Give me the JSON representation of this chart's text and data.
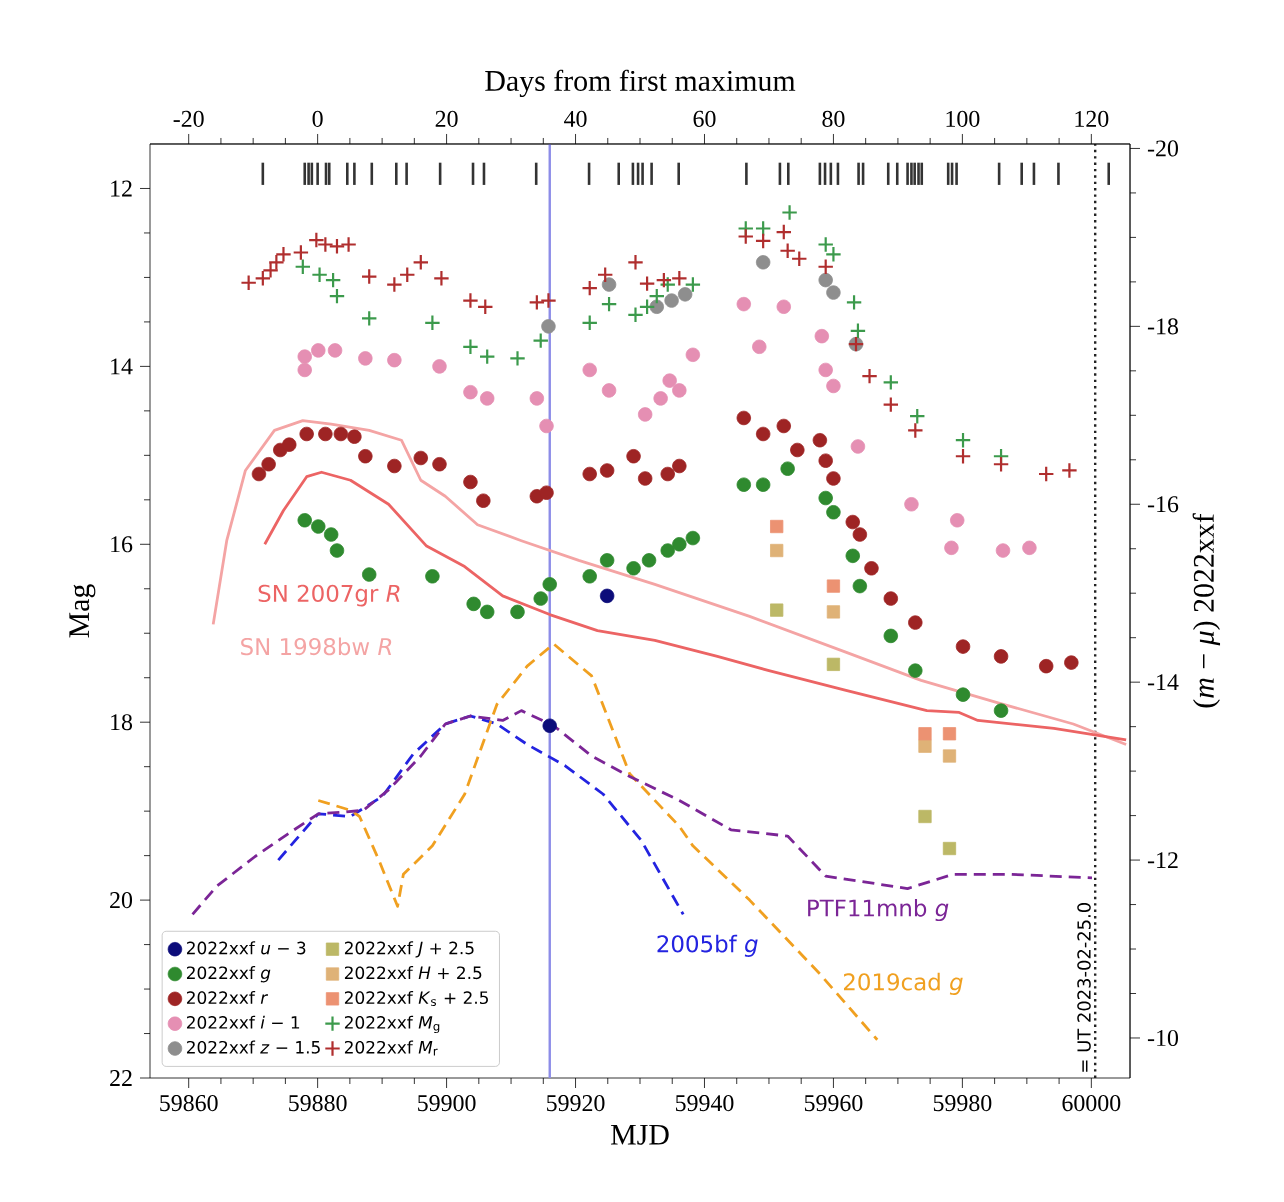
{
  "chart_data": {
    "type": "scatter",
    "xlabel": "MJD",
    "ylabel": "Mag",
    "x2label": "Days from first maximum",
    "y2label": "(*m* − *μ*) 2022xxf",
    "xlim": [
      59854,
      60006
    ],
    "ylim": [
      22,
      11.5
    ],
    "x2lim": [
      -26,
      126
    ],
    "y2lim": [
      -9.55,
      -20.05
    ],
    "xticks": [
      59860,
      59880,
      59900,
      59920,
      59940,
      59960,
      59980,
      60000
    ],
    "yticks": [
      12,
      14,
      16,
      18,
      20,
      22
    ],
    "x2ticks": [
      -20,
      0,
      20,
      40,
      60,
      80,
      100,
      120
    ],
    "y2ticks": [
      -20,
      -18,
      -16,
      -14,
      -12,
      -10
    ],
    "legend": "bottom left",
    "ref_lines": [
      {
        "axis": "x",
        "value": 59916.0,
        "color": "#8c8ce8"
      },
      {
        "axis": "x",
        "value": 60000.6,
        "label": "= UT 2023-02-25.0",
        "line_style": "dotted",
        "color": "#222222"
      }
    ],
    "annotations": [
      {
        "text": "SN 2007gr *R*",
        "x": 59871.8,
        "y": 16.0
      },
      {
        "text": "SN 1998bw *R*",
        "x": 59863.8,
        "y": 16.9
      },
      {
        "text": "2005bf *g*",
        "x": 59936.7,
        "y": 20.16
      },
      {
        "text": "PTF11mnb *g*",
        "x": 59971.5,
        "y": 19.87
      },
      {
        "text": "2019cad *g*",
        "x": 59957.9,
        "y": 20.83
      }
    ],
    "series": [
      {
        "type": "line",
        "color": "#f4a4a4",
        "line_style": "solid",
        "marker": "none",
        "x": [
          59863.8,
          59865.9,
          59868.8,
          59873.3,
          59877.7,
          59882.1,
          59888.0,
          59893.0,
          59896.0,
          59899.8,
          59904.8,
          59911.6,
          59920.5,
          59932.3,
          59947.0,
          59961.8,
          59973.6,
          59985.4,
          59997.2,
          60005.4
        ],
        "values": [
          16.9,
          15.96,
          15.17,
          14.72,
          14.61,
          14.65,
          14.72,
          14.83,
          15.28,
          15.46,
          15.78,
          15.96,
          16.18,
          16.45,
          16.81,
          17.21,
          17.53,
          17.78,
          18.02,
          18.25
        ]
      },
      {
        "type": "line",
        "color": "#ec6464",
        "line_style": "solid",
        "marker": "none",
        "x": [
          59871.8,
          59874.7,
          59878.3,
          59880.6,
          59885.1,
          59891.0,
          59896.9,
          59902.8,
          59908.7,
          59916.0,
          59923.4,
          59932.3,
          59942.0,
          59950.0,
          59961.8,
          59974.5,
          59979.5,
          59982.4,
          59994.2,
          60005.4
        ],
        "values": [
          16.0,
          15.62,
          15.24,
          15.19,
          15.28,
          15.55,
          16.02,
          16.25,
          16.58,
          16.79,
          16.97,
          17.08,
          17.26,
          17.42,
          17.64,
          17.87,
          17.89,
          17.98,
          18.07,
          18.2
        ]
      },
      {
        "type": "line",
        "color": "#2323e0",
        "line_style": "dashed",
        "marker": "none",
        "x": [
          59873.9,
          59880.1,
          59885.1,
          59890.1,
          59894.8,
          59899.8,
          59903.7,
          59907.8,
          59912.5,
          59918.4,
          59924.3,
          59930.2,
          59936.7
        ],
        "values": [
          19.55,
          19.03,
          19.06,
          18.83,
          18.36,
          18.02,
          17.93,
          18.02,
          18.25,
          18.49,
          18.81,
          19.33,
          20.16
        ]
      },
      {
        "type": "line",
        "color": "#f0a020",
        "line_style": "dashed",
        "marker": "none",
        "x": [
          59880.1,
          59885.1,
          59886.5,
          59889.5,
          59892.4,
          59893.3,
          59897.8,
          59902.8,
          59907.8,
          59912.5,
          59916.6,
          59922.5,
          59925.5,
          59928.4,
          59936.1,
          59938.2,
          59947.0,
          59957.9,
          59966.8
        ],
        "values": [
          18.88,
          18.99,
          19.06,
          19.55,
          20.07,
          19.71,
          19.39,
          18.81,
          17.8,
          17.37,
          17.12,
          17.48,
          18.04,
          18.58,
          19.17,
          19.39,
          20.0,
          20.83,
          21.57
        ]
      },
      {
        "type": "line",
        "color": "#7b2596",
        "line_style": "dashed",
        "marker": "none",
        "x": [
          59860.6,
          59864.4,
          59870.3,
          59875.3,
          59880.1,
          59884.2,
          59887.1,
          59891.0,
          59896.0,
          59899.8,
          59903.7,
          59908.7,
          59911.6,
          59916.6,
          59922.5,
          59928.4,
          59936.1,
          59944.1,
          59952.9,
          59958.8,
          59971.5,
          59978.6,
          59987.4,
          60000.1
        ],
        "values": [
          20.16,
          19.84,
          19.51,
          19.26,
          19.03,
          19.01,
          18.99,
          18.76,
          18.38,
          18.02,
          17.93,
          17.98,
          17.87,
          18.04,
          18.38,
          18.61,
          18.88,
          19.21,
          19.28,
          19.73,
          19.87,
          19.71,
          19.71,
          19.75
        ]
      },
      {
        "type": "bar",
        "color": "#333333",
        "x": [
          59871.5,
          59878.0,
          59878.6,
          59879.1,
          59880.0,
          59881.3,
          59881.8,
          59884.6,
          59885.7,
          59888.4,
          59892.2,
          59893.8,
          59899.0,
          59904.1,
          59905.8,
          59913.9,
          59922.1,
          59926.7,
          59928.9,
          59929.7,
          59930.4,
          59931.8,
          59936.0,
          59946.5,
          59951.7,
          59953.0,
          59957.9,
          59958.7,
          59959.6,
          59960.7,
          59963.9,
          59964.6,
          59968.5,
          59969.9,
          59971.5,
          59972.1,
          59972.6,
          59973.2,
          59973.7,
          59977.8,
          59978.4,
          59979.1,
          59985.7,
          59989.2,
          59991.1,
          59994.9,
          60002.7
        ],
        "base": [
          11.71,
          11.71,
          11.71,
          11.71,
          11.71,
          11.71,
          11.71,
          11.71,
          11.71,
          11.71,
          11.71,
          11.71,
          11.71,
          11.71,
          11.71,
          11.71,
          11.71,
          11.71,
          11.71,
          11.71,
          11.71,
          11.71,
          11.71,
          11.71,
          11.71,
          11.71,
          11.71,
          11.71,
          11.71,
          11.71,
          11.71,
          11.71,
          11.71,
          11.71,
          11.71,
          11.71,
          11.71,
          11.71,
          11.71,
          11.71,
          11.71,
          11.71,
          11.71,
          11.71,
          11.71,
          11.71,
          11.71
        ],
        "values": [
          0.25,
          0.25,
          0.25,
          0.25,
          0.25,
          0.25,
          0.25,
          0.25,
          0.25,
          0.25,
          0.25,
          0.25,
          0.25,
          0.25,
          0.25,
          0.25,
          0.25,
          0.25,
          0.25,
          0.25,
          0.25,
          0.25,
          0.25,
          0.25,
          0.25,
          0.25,
          0.25,
          0.25,
          0.25,
          0.25,
          0.25,
          0.25,
          0.25,
          0.25,
          0.25,
          0.25,
          0.25,
          0.25,
          0.25,
          0.25,
          0.25,
          0.25,
          0.25,
          0.25,
          0.25,
          0.25,
          0.25
        ]
      },
      {
        "name": "2022xxf *u* − 3",
        "marker": "circle",
        "color": "#0c0c7a",
        "x": [
          59924.9,
          59916.0
        ],
        "values": [
          16.58,
          18.04
        ]
      },
      {
        "name": "2022xxf *g*",
        "marker": "circle",
        "color": "#2f8a2f",
        "x": [
          59878.0,
          59880.1,
          59882.1,
          59883.0,
          59888.0,
          59897.8,
          59904.2,
          59906.3,
          59911.0,
          59914.6,
          59916.0,
          59922.2,
          59924.9,
          59929.0,
          59931.4,
          59934.3,
          59936.1,
          59938.2,
          59946.1,
          59949.1,
          59952.9,
          59958.8,
          59960.0,
          59963.0,
          59964.1,
          59968.9,
          59972.7,
          59980.1,
          59986.0
        ],
        "values": [
          15.73,
          15.8,
          15.89,
          16.07,
          16.34,
          16.36,
          16.67,
          16.76,
          16.76,
          16.61,
          16.45,
          16.36,
          16.18,
          16.27,
          16.18,
          16.07,
          16.0,
          15.93,
          15.33,
          15.33,
          15.15,
          15.48,
          15.64,
          16.13,
          16.47,
          17.03,
          17.42,
          17.69,
          17.87
        ]
      },
      {
        "name": "2022xxf *r*",
        "marker": "circle",
        "color": "#9e2424",
        "x": [
          59870.9,
          59872.4,
          59874.2,
          59875.6,
          59878.3,
          59881.2,
          59883.6,
          59885.7,
          59887.4,
          59891.9,
          59896.0,
          59898.9,
          59903.7,
          59905.7,
          59914.0,
          59915.5,
          59922.2,
          59924.9,
          59929.0,
          59930.8,
          59934.3,
          59936.1,
          59946.1,
          59949.1,
          59952.3,
          59954.4,
          59957.9,
          59958.8,
          59960.0,
          59963.0,
          59964.1,
          59965.9,
          59968.9,
          59972.7,
          59980.1,
          59986.0,
          59993.0,
          59996.9
        ],
        "values": [
          15.21,
          15.1,
          14.94,
          14.88,
          14.76,
          14.76,
          14.76,
          14.79,
          15.01,
          15.12,
          15.03,
          15.1,
          15.3,
          15.51,
          15.46,
          15.42,
          15.21,
          15.17,
          15.01,
          15.26,
          15.21,
          15.12,
          14.58,
          14.76,
          14.67,
          14.94,
          14.83,
          15.06,
          15.26,
          15.75,
          15.89,
          16.27,
          16.61,
          16.88,
          17.15,
          17.26,
          17.37,
          17.33
        ]
      },
      {
        "name": "2022xxf *i* − 1",
        "marker": "circle",
        "color": "#e58fb3",
        "x": [
          59878.0,
          59878.0,
          59880.1,
          59882.7,
          59887.4,
          59891.9,
          59898.9,
          59903.7,
          59906.3,
          59914.0,
          59915.5,
          59922.2,
          59925.2,
          59930.8,
          59933.2,
          59934.6,
          59936.1,
          59938.2,
          59946.1,
          59948.5,
          59952.3,
          59958.2,
          59958.8,
          59960.0,
          59963.8,
          59972.1,
          59979.2,
          59978.3,
          59986.3,
          59990.4
        ],
        "values": [
          13.89,
          14.04,
          13.82,
          13.82,
          13.91,
          13.93,
          14.0,
          14.29,
          14.36,
          14.36,
          14.67,
          14.04,
          14.27,
          14.54,
          14.36,
          14.16,
          14.27,
          13.87,
          13.3,
          13.78,
          13.33,
          13.66,
          14.04,
          14.22,
          14.9,
          15.55,
          15.73,
          16.04,
          16.07,
          16.04
        ]
      },
      {
        "name": "2022xxf *z* − 1.5",
        "marker": "circle",
        "color": "#8e8e8e",
        "x": [
          59915.8,
          59925.2,
          59932.6,
          59934.9,
          59937.0,
          59949.1,
          59958.8,
          59960.0,
          59963.5
        ],
        "values": [
          13.55,
          13.08,
          13.33,
          13.26,
          13.19,
          12.83,
          13.03,
          13.17,
          13.75
        ]
      },
      {
        "name": "2022xxf *J* + 2.5",
        "marker": "square",
        "color": "#bcb866",
        "x": [
          59951.2,
          59960.0,
          59974.2,
          59978.0
        ],
        "values": [
          16.74,
          17.35,
          19.06,
          19.42
        ]
      },
      {
        "name": "2022xxf *H* + 2.5",
        "marker": "square",
        "color": "#dfb277",
        "x": [
          59951.2,
          59960.0,
          59974.2,
          59978.0
        ],
        "values": [
          16.07,
          16.76,
          18.27,
          18.38
        ]
      },
      {
        "name": "2022xxf *K*$_{s}$ + 2.5",
        "marker": "square",
        "color": "#ec9272",
        "x": [
          59951.2,
          59960.0,
          59974.2,
          59978.0
        ],
        "values": [
          15.8,
          16.47,
          18.13,
          18.13
        ]
      },
      {
        "name": "2022xxf *M*$_{g}$",
        "marker": "cross",
        "axis": "y2",
        "color": "#3c9a4c",
        "x": [
          59877.7,
          59880.3,
          59882.4,
          59883.0,
          59888.0,
          59897.8,
          59903.7,
          59906.3,
          59911.0,
          59914.6,
          59922.2,
          59925.2,
          59929.3,
          59931.1,
          59932.6,
          59934.3,
          59938.2,
          59946.4,
          59949.1,
          59953.2,
          59958.8,
          59960.0,
          59963.2,
          59963.8,
          59968.9,
          59973.0,
          59980.1,
          59986.0
        ],
        "values": [
          -18.67,
          -18.58,
          -18.52,
          -18.34,
          -18.09,
          -18.04,
          -17.77,
          -17.66,
          -17.64,
          -17.84,
          -18.04,
          -18.25,
          -18.13,
          -18.22,
          -18.34,
          -18.47,
          -18.47,
          -19.1,
          -19.1,
          -19.28,
          -18.92,
          -18.81,
          -18.27,
          -17.95,
          -17.37,
          -16.99,
          -16.72,
          -16.54
        ]
      },
      {
        "name": "2022xxf *M*$_{r}$",
        "marker": "cross",
        "axis": "y2",
        "color": "#b02e2e",
        "x": [
          59869.3,
          59871.5,
          59872.7,
          59873.6,
          59874.7,
          59877.4,
          59879.8,
          59881.2,
          59883.0,
          59884.8,
          59888.0,
          59891.9,
          59893.9,
          59896.0,
          59899.2,
          59903.7,
          59906.0,
          59914.0,
          59915.8,
          59922.2,
          59924.6,
          59929.3,
          59931.1,
          59933.7,
          59936.1,
          59946.4,
          59949.1,
          59952.3,
          59952.9,
          59954.7,
          59958.8,
          59963.5,
          59965.6,
          59968.9,
          59972.7,
          59980.1,
          59986.0,
          59993.0,
          59996.6
        ],
        "values": [
          -18.49,
          -18.54,
          -18.63,
          -18.72,
          -18.81,
          -18.83,
          -18.97,
          -18.92,
          -18.9,
          -18.92,
          -18.56,
          -18.47,
          -18.58,
          -18.72,
          -18.54,
          -18.29,
          -18.22,
          -18.27,
          -18.29,
          -18.43,
          -18.58,
          -18.72,
          -18.48,
          -18.52,
          -18.54,
          -19.01,
          -18.96,
          -19.06,
          -18.85,
          -18.76,
          -18.67,
          -17.8,
          -17.44,
          -17.12,
          -16.83,
          -16.54,
          -16.45,
          -16.34,
          -16.38
        ]
      }
    ]
  }
}
